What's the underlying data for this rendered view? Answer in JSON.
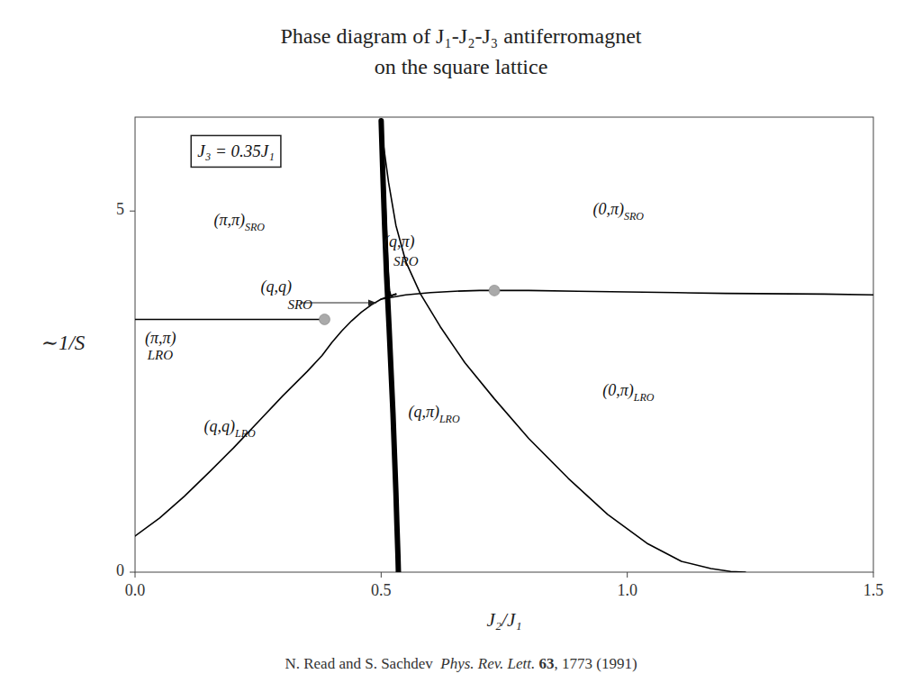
{
  "chart_data": {
    "type": "line",
    "title": "Phase diagram of J₁-J₂-J₃  antiferromagnet",
    "subtitle": "on the square lattice",
    "xlabel": "J₂/J₁",
    "ylabel": "∼1/S",
    "xlim": [
      0,
      1.5
    ],
    "ylim": [
      0,
      6.3
    ],
    "xticks": [
      {
        "value": 0,
        "label": "0.0"
      },
      0.5,
      {
        "value": 1,
        "label": "1.0"
      },
      1.5
    ],
    "yticks": [
      0,
      5
    ],
    "grid": false,
    "series": [
      {
        "color": "#000000",
        "x": [
          0.0,
          0.05,
          0.1,
          0.15,
          0.2,
          0.25,
          0.3,
          0.35,
          0.38,
          0.4,
          0.42,
          0.44,
          0.46,
          0.48,
          0.5,
          0.52,
          0.53
        ],
        "values": [
          0.5,
          0.75,
          1.05,
          1.38,
          1.72,
          2.08,
          2.44,
          2.78,
          3.0,
          3.18,
          3.34,
          3.48,
          3.6,
          3.7,
          3.78,
          3.83,
          3.85
        ]
      },
      {
        "color": "#000000",
        "x": [
          0.5,
          0.55,
          0.6,
          0.65,
          0.7,
          0.75,
          0.8,
          0.9,
          1.0,
          1.1,
          1.2,
          1.4,
          1.5
        ],
        "values": [
          3.78,
          3.84,
          3.87,
          3.89,
          3.9,
          3.9,
          3.9,
          3.89,
          3.88,
          3.87,
          3.86,
          3.85,
          3.84
        ]
      },
      {
        "color": "#000000",
        "x": [
          0.5,
          0.502,
          0.505,
          0.508,
          0.511,
          0.514,
          0.517,
          0.52,
          0.525,
          0.53
        ],
        "values": [
          6.25,
          6.1,
          5.7,
          5.2,
          4.7,
          4.2,
          3.9,
          3.82,
          3.84,
          3.85
        ]
      },
      {
        "color": "#000000",
        "x": [
          0.5,
          0.505,
          0.515,
          0.53,
          0.55,
          0.58,
          0.62,
          0.67,
          0.73,
          0.8,
          0.88,
          0.96,
          1.04,
          1.11,
          1.17,
          1.21,
          1.24
        ],
        "values": [
          6.25,
          5.9,
          5.4,
          4.8,
          4.3,
          3.85,
          3.4,
          2.9,
          2.4,
          1.85,
          1.3,
          0.8,
          0.4,
          0.15,
          0.05,
          0.01,
          0.0
        ]
      },
      {
        "color": "#000000",
        "line_style": "thick",
        "x": [
          0.5,
          0.503,
          0.507,
          0.511,
          0.516,
          0.52,
          0.524,
          0.527,
          0.53,
          0.532,
          0.534,
          0.535
        ],
        "values": [
          6.25,
          5.6,
          4.8,
          4.1,
          3.4,
          2.8,
          2.2,
          1.65,
          1.1,
          0.65,
          0.25,
          0.0
        ]
      },
      {
        "color": "#000000",
        "x": [
          0.0,
          0.385
        ],
        "values": [
          3.5,
          3.5
        ]
      },
      {
        "type": "scatter",
        "color": "#aaaaaa",
        "x": [
          0.385,
          0.73
        ],
        "values": [
          3.5,
          3.9
        ]
      }
    ],
    "box_label": {
      "text": "J₃ = 0.35J₁",
      "x": 0.205,
      "y": 5.8
    },
    "annotations": [
      {
        "text": "(π,π)",
        "sub": "SRO",
        "x": 0.16,
        "y": 4.85
      },
      {
        "text": "(0,π)",
        "sub": "SRO",
        "x": 0.93,
        "y": 5.0
      },
      {
        "text": "(q,π)",
        "x": 0.505,
        "y": 4.55
      },
      {
        "text": "SRO",
        "x": 0.525,
        "y": 4.28
      },
      {
        "text": "(q,q)",
        "x": 0.255,
        "y": 3.93
      },
      {
        "text": "SRO",
        "x": 0.31,
        "y": 3.68
      },
      {
        "text": "(π,π)",
        "x": 0.02,
        "y": 3.22
      },
      {
        "text": "LRO",
        "x": 0.025,
        "y": 2.98
      },
      {
        "text": "(q,q)",
        "sub": "LRO",
        "x": 0.14,
        "y": 2.0
      },
      {
        "text": "(q,π)",
        "sub": "LRO",
        "x": 0.555,
        "y": 2.2
      },
      {
        "text": "(0,π)",
        "sub": "LRO",
        "x": 0.95,
        "y": 2.5
      }
    ],
    "arrows": [
      {
        "x": [
          0.335,
          0.49
        ],
        "y": [
          3.73,
          3.73
        ]
      }
    ],
    "citation": [
      "N. Read and S. Sachdev  ",
      "Phys. Rev. Lett.",
      " 63",
      ", 1773 (1991)"
    ]
  }
}
